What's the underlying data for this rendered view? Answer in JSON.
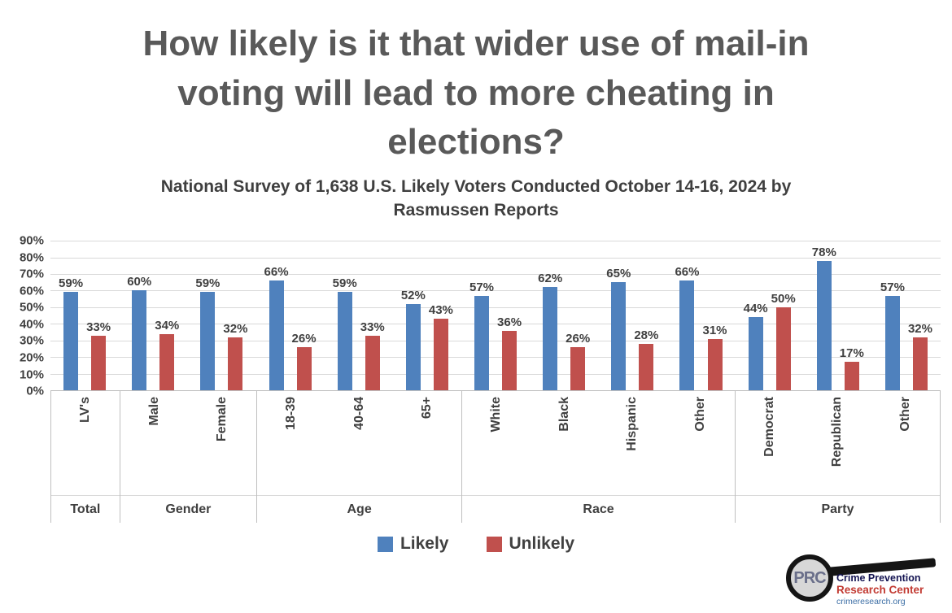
{
  "title": {
    "full": "How likely is it that wider use of mail-in voting will lead to more cheating in elections?",
    "lines": [
      "How likely is it that wider use of mail-in",
      "voting will lead to more cheating in",
      "elections?"
    ]
  },
  "subtitle": {
    "lines": [
      "National Survey of 1,638 U.S. Likely Voters Conducted October 14-16, 2024 by",
      "Rasmussen Reports"
    ]
  },
  "chart_data": {
    "type": "bar",
    "title": "How likely is it that wider use of mail-in voting will lead to more cheating in elections?",
    "xlabel": "",
    "ylabel": "",
    "ylim": [
      0,
      90
    ],
    "ytick_step": 10,
    "ytick_suffix": "%",
    "grid": true,
    "legend_position": "bottom",
    "categories": [
      "LV's",
      "Male",
      "Female",
      "18-39",
      "40-64",
      "65+",
      "White",
      "Black",
      "Hispanic",
      "Other",
      "Democrat",
      "Republican",
      "Other"
    ],
    "groups": [
      {
        "label": "Total",
        "categories": [
          "LV's"
        ]
      },
      {
        "label": "Gender",
        "categories": [
          "Male",
          "Female"
        ]
      },
      {
        "label": "Age",
        "categories": [
          "18-39",
          "40-64",
          "65+"
        ]
      },
      {
        "label": "Race",
        "categories": [
          "White",
          "Black",
          "Hispanic",
          "Other"
        ]
      },
      {
        "label": "Party",
        "categories": [
          "Democrat",
          "Republican",
          "Other"
        ]
      }
    ],
    "series": [
      {
        "name": "Likely",
        "color": "#4F81BD",
        "values": [
          59,
          60,
          59,
          66,
          59,
          52,
          57,
          62,
          65,
          66,
          44,
          78,
          57
        ]
      },
      {
        "name": "Unlikely",
        "color": "#C0504D",
        "values": [
          33,
          34,
          32,
          26,
          33,
          43,
          36,
          26,
          28,
          31,
          50,
          17,
          32
        ]
      }
    ]
  },
  "logo": {
    "lens_text": "PRC",
    "org_line1": "Crime Prevention",
    "org_line2": "Research Center",
    "org_line3": "crimeresearch.org"
  }
}
